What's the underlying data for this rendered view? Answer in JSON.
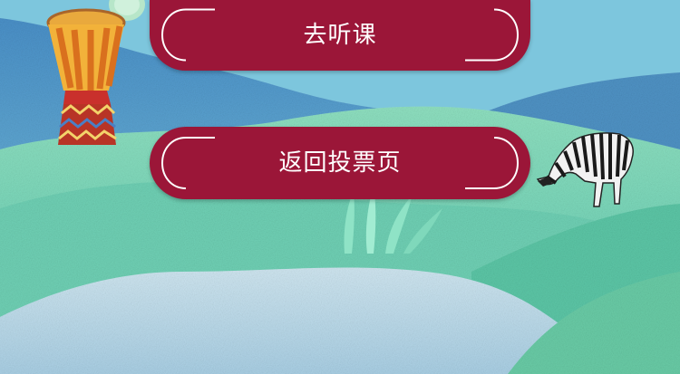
{
  "buttons": {
    "listen_label": "去听课",
    "return_label": "返回投票页"
  },
  "icons": {
    "drum": "african-drum-icon",
    "zebra": "zebra-icon",
    "plant": "plant-leaves-icon",
    "cactus": "cactus-icon"
  },
  "colors": {
    "button_bg": "#9b1638",
    "button_text": "#ffffff",
    "sky": "#7fc8de",
    "hills_green": "#7fd9b6",
    "hills_blue": "#5aa6cf"
  }
}
